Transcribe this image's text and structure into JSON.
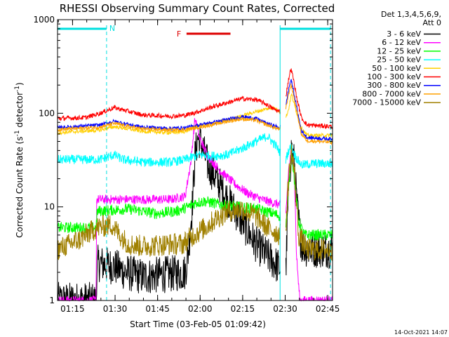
{
  "chart_data": {
    "type": "line",
    "title": "RHESSI Observing Summary Count Rates, Corrected",
    "xlabel": "Start Time (03-Feb-05 01:09:42)",
    "ylabel_main": "Corrected Count Rate (s",
    "ylabel_sup1": "-1",
    "ylabel_mid": " detector",
    "ylabel_sup2": "-1",
    "ylabel_end": ")",
    "y_scale": "log",
    "ylim": [
      1,
      1000
    ],
    "xlim_minutes": [
      0,
      97
    ],
    "x_ticks": [
      {
        "t": 5.3,
        "label": "01:15"
      },
      {
        "t": 20.3,
        "label": "01:30"
      },
      {
        "t": 35.3,
        "label": "01:45"
      },
      {
        "t": 50.3,
        "label": "02:00"
      },
      {
        "t": 65.3,
        "label": "02:15"
      },
      {
        "t": 80.3,
        "label": "02:30"
      },
      {
        "t": 95.3,
        "label": "02:45"
      }
    ],
    "y_ticks": [
      {
        "v": 1,
        "label": "1"
      },
      {
        "v": 10,
        "label": "10"
      },
      {
        "v": 100,
        "label": "100"
      },
      {
        "v": 1000,
        "label": "1000"
      }
    ],
    "legend_header": [
      "Det 1,3,4,5,6,9,",
      "Att 0"
    ],
    "series": [
      {
        "name": "3 - 6 keV",
        "color": "#000000",
        "noise": 0.2,
        "gaps": [
          [
            78.6,
            80.5
          ]
        ],
        "points": [
          [
            0,
            1
          ],
          [
            13.6,
            1
          ],
          [
            14.2,
            2.5
          ],
          [
            20,
            2.3
          ],
          [
            24,
            2
          ],
          [
            30,
            1.8
          ],
          [
            38,
            1.9
          ],
          [
            45,
            2.0
          ],
          [
            46,
            3
          ],
          [
            47.5,
            10
          ],
          [
            48.5,
            35
          ],
          [
            49.5,
            55
          ],
          [
            51,
            45
          ],
          [
            53,
            28
          ],
          [
            56,
            20
          ],
          [
            60,
            12
          ],
          [
            65,
            7
          ],
          [
            70,
            4
          ],
          [
            74,
            3
          ],
          [
            78.5,
            2.2
          ],
          [
            80.5,
            2
          ],
          [
            81.5,
            15
          ],
          [
            82.5,
            42
          ],
          [
            83.5,
            30
          ],
          [
            84.5,
            10
          ],
          [
            86,
            4
          ],
          [
            88,
            3.5
          ],
          [
            97,
            3.5
          ]
        ]
      },
      {
        "name": "6 - 12 keV",
        "color": "#ff00ff",
        "noise": 0.05,
        "gaps": [
          [
            78.6,
            80.5
          ]
        ],
        "points": [
          [
            0,
            1
          ],
          [
            13.6,
            1
          ],
          [
            13.8,
            12
          ],
          [
            20,
            12
          ],
          [
            30,
            12
          ],
          [
            40,
            12
          ],
          [
            45,
            13
          ],
          [
            47,
            30
          ],
          [
            48.5,
            88
          ],
          [
            50,
            55
          ],
          [
            53,
            35
          ],
          [
            57,
            25
          ],
          [
            62,
            18
          ],
          [
            67,
            14
          ],
          [
            72,
            12
          ],
          [
            78.5,
            10.5
          ],
          [
            80.5,
            8
          ],
          [
            81.5,
            25
          ],
          [
            82.5,
            40
          ],
          [
            83.5,
            25
          ],
          [
            84.3,
            3
          ],
          [
            85,
            1.5
          ],
          [
            85.5,
            1
          ],
          [
            97,
            1
          ]
        ]
      },
      {
        "name": "12 - 25 keV",
        "color": "#00ff00",
        "noise": 0.06,
        "gaps": [
          [
            78.6,
            80.5
          ]
        ],
        "points": [
          [
            0,
            6
          ],
          [
            13.6,
            6
          ],
          [
            14,
            9
          ],
          [
            25,
            9.5
          ],
          [
            35,
            8.5
          ],
          [
            42,
            9
          ],
          [
            46,
            10
          ],
          [
            48.5,
            11
          ],
          [
            52,
            11.5
          ],
          [
            58,
            10.5
          ],
          [
            64,
            10
          ],
          [
            70,
            9.5
          ],
          [
            76,
            8.5
          ],
          [
            78.5,
            8
          ],
          [
            80.5,
            6
          ],
          [
            81.5,
            15
          ],
          [
            82.5,
            40
          ],
          [
            83.5,
            20
          ],
          [
            85,
            7
          ],
          [
            87,
            5
          ],
          [
            97,
            5
          ]
        ]
      },
      {
        "name": "25 - 50 keV",
        "color": "#00ffff",
        "noise": 0.05,
        "gaps": [
          [
            78.6,
            80.5
          ]
        ],
        "points": [
          [
            0,
            32
          ],
          [
            15,
            32
          ],
          [
            20,
            36
          ],
          [
            23,
            32
          ],
          [
            30,
            30
          ],
          [
            40,
            30
          ],
          [
            45,
            32
          ],
          [
            50,
            36
          ],
          [
            55,
            35
          ],
          [
            60,
            36
          ],
          [
            65,
            42
          ],
          [
            70,
            50
          ],
          [
            74,
            57
          ],
          [
            77,
            45
          ],
          [
            78.5,
            38
          ],
          [
            80.5,
            32
          ],
          [
            81.5,
            40
          ],
          [
            82.5,
            44
          ],
          [
            84,
            34
          ],
          [
            86,
            28
          ],
          [
            90,
            29
          ],
          [
            97,
            29
          ]
        ]
      },
      {
        "name": "50 - 100 keV",
        "color": "#ffd000",
        "noise": 0.02,
        "gaps": [
          [
            78.6,
            80.5
          ]
        ],
        "points": [
          [
            0,
            62
          ],
          [
            15,
            66
          ],
          [
            20,
            72
          ],
          [
            25,
            68
          ],
          [
            30,
            64
          ],
          [
            40,
            62
          ],
          [
            45,
            64
          ],
          [
            48,
            70
          ],
          [
            52,
            75
          ],
          [
            57,
            80
          ],
          [
            62,
            88
          ],
          [
            68,
            100
          ],
          [
            73,
            110
          ],
          [
            76,
            115
          ],
          [
            78.5,
            105
          ],
          [
            80.5,
            90
          ],
          [
            81.5,
            110
          ],
          [
            82.5,
            160
          ],
          [
            84,
            110
          ],
          [
            86,
            70
          ],
          [
            88,
            58
          ],
          [
            97,
            58
          ]
        ]
      },
      {
        "name": "100 - 300 keV",
        "color": "#ff0000",
        "noise": 0.025,
        "gaps": [
          [
            78.6,
            80.5
          ]
        ],
        "points": [
          [
            0,
            88
          ],
          [
            10,
            90
          ],
          [
            15,
            100
          ],
          [
            20,
            115
          ],
          [
            25,
            105
          ],
          [
            30,
            96
          ],
          [
            40,
            93
          ],
          [
            45,
            95
          ],
          [
            50,
            105
          ],
          [
            55,
            118
          ],
          [
            60,
            130
          ],
          [
            65,
            143
          ],
          [
            70,
            140
          ],
          [
            73,
            128
          ],
          [
            76,
            112
          ],
          [
            78.5,
            103
          ],
          [
            80.5,
            150
          ],
          [
            81.5,
            230
          ],
          [
            82.3,
            300
          ],
          [
            83,
            250
          ],
          [
            84.5,
            140
          ],
          [
            86,
            90
          ],
          [
            88,
            75
          ],
          [
            97,
            72
          ]
        ]
      },
      {
        "name": "300 - 800 keV",
        "color": "#0000ff",
        "noise": 0.02,
        "gaps": [
          [
            78.6,
            80.5
          ]
        ],
        "points": [
          [
            0,
            70
          ],
          [
            15,
            75
          ],
          [
            20,
            82
          ],
          [
            25,
            76
          ],
          [
            30,
            71
          ],
          [
            40,
            69
          ],
          [
            45,
            70
          ],
          [
            50,
            75
          ],
          [
            55,
            80
          ],
          [
            60,
            86
          ],
          [
            65,
            92
          ],
          [
            70,
            88
          ],
          [
            73,
            80
          ],
          [
            76,
            74
          ],
          [
            78.5,
            70
          ],
          [
            80.5,
            120
          ],
          [
            81.5,
            180
          ],
          [
            82.3,
            230
          ],
          [
            83,
            190
          ],
          [
            84.5,
            110
          ],
          [
            86,
            65
          ],
          [
            88,
            55
          ],
          [
            97,
            53
          ]
        ]
      },
      {
        "name": "800 - 7000 keV",
        "color": "#ffa000",
        "noise": 0.02,
        "gaps": [
          [
            78.6,
            80.5
          ]
        ],
        "points": [
          [
            0,
            67
          ],
          [
            15,
            71
          ],
          [
            20,
            78
          ],
          [
            25,
            72
          ],
          [
            30,
            68
          ],
          [
            40,
            66
          ],
          [
            45,
            67
          ],
          [
            50,
            71
          ],
          [
            55,
            76
          ],
          [
            60,
            82
          ],
          [
            65,
            87
          ],
          [
            70,
            84
          ],
          [
            73,
            77
          ],
          [
            76,
            71
          ],
          [
            78.5,
            67
          ],
          [
            80.5,
            110
          ],
          [
            81.5,
            160
          ],
          [
            82.3,
            200
          ],
          [
            83,
            170
          ],
          [
            84.5,
            100
          ],
          [
            86,
            60
          ],
          [
            88,
            51
          ],
          [
            97,
            49
          ]
        ]
      },
      {
        "name": "7000 - 15000 keV",
        "color": "#a08000",
        "noise": 0.12,
        "gaps": [
          [
            78.6,
            80.5
          ]
        ],
        "points": [
          [
            0,
            3.5
          ],
          [
            8,
            4.5
          ],
          [
            12,
            5.5
          ],
          [
            14,
            6
          ],
          [
            19,
            6.5
          ],
          [
            22,
            5
          ],
          [
            25,
            4
          ],
          [
            30,
            3.8
          ],
          [
            40,
            4
          ],
          [
            44,
            4
          ],
          [
            48,
            5
          ],
          [
            52,
            6
          ],
          [
            56,
            7.5
          ],
          [
            60,
            9
          ],
          [
            65,
            9.5
          ],
          [
            70,
            8
          ],
          [
            74,
            6
          ],
          [
            78.5,
            5
          ],
          [
            80.5,
            6
          ],
          [
            81.5,
            20
          ],
          [
            82.5,
            40
          ],
          [
            83.5,
            25
          ],
          [
            85,
            5
          ],
          [
            88,
            3.5
          ],
          [
            97,
            3.5
          ]
        ]
      }
    ],
    "attenuator_markers": [
      {
        "label": "N",
        "t_start": 0,
        "t_end": 17.3,
        "color": "#00e0e0"
      },
      {
        "label": "",
        "t_start": 78.5,
        "t_end": 96.3,
        "color": "#00e0e0"
      }
    ],
    "flare_marker": {
      "label": "F",
      "t_start": 45.5,
      "t_end": 61,
      "color": "#dd0000"
    },
    "footer": "14-Oct-2021 14:07"
  }
}
